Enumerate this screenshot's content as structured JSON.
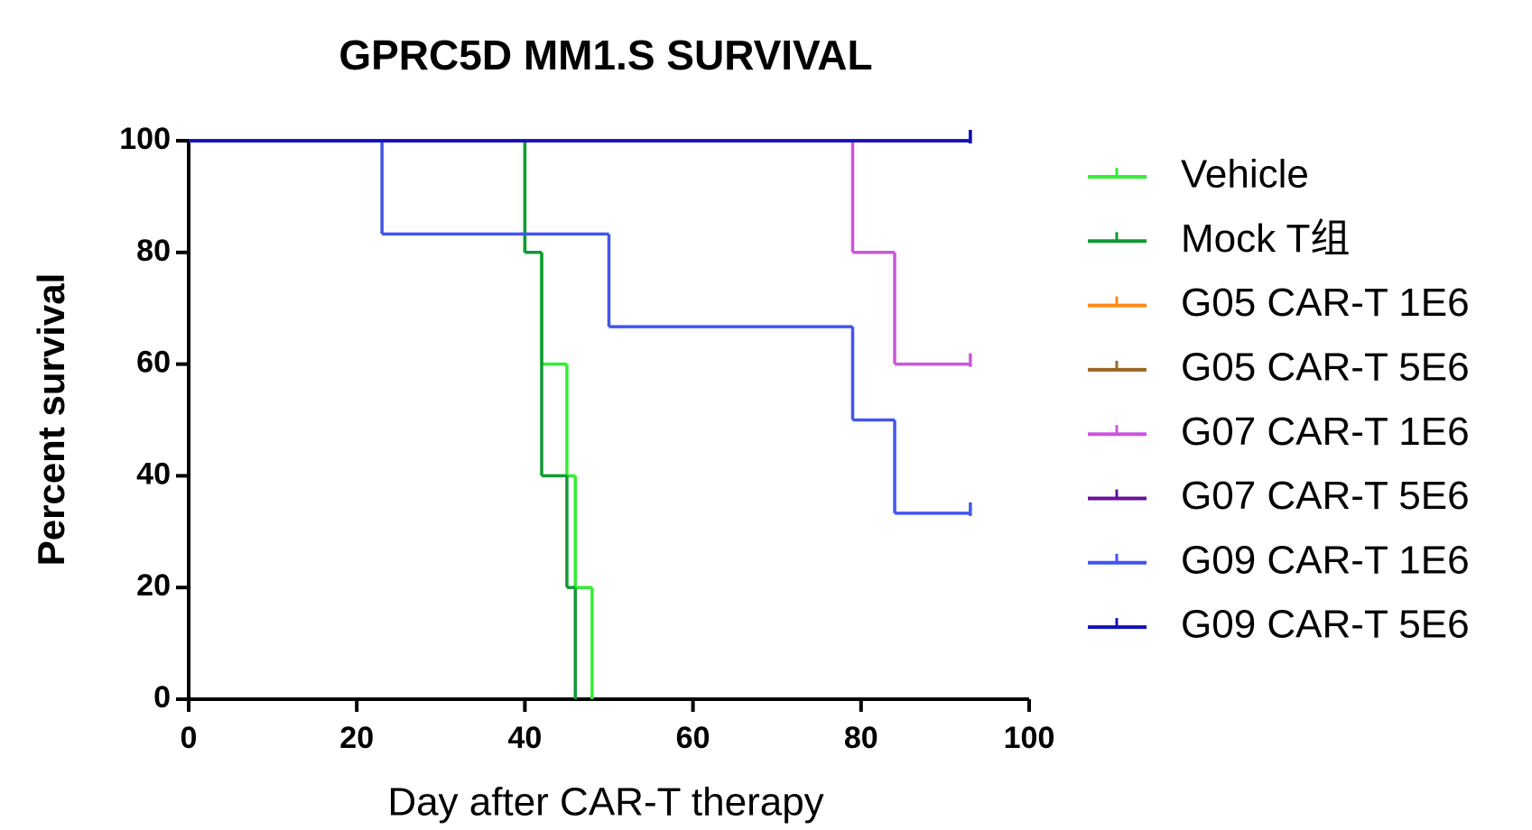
{
  "chart_data": {
    "type": "step",
    "title": "GPRC5D MM1.S SURVIVAL",
    "x_label": "Day after CAR-T therapy",
    "y_label": "Percent survival",
    "xlim": [
      0,
      100
    ],
    "xticks": [
      0,
      20,
      40,
      60,
      80,
      100
    ],
    "ylim": [
      0,
      100
    ],
    "yticks": [
      0,
      20,
      40,
      60,
      80,
      100
    ],
    "series": [
      {
        "name": "Vehicle",
        "color": "#33ee33",
        "x": [
          0,
          40,
          42,
          45,
          46,
          48
        ],
        "values": [
          100,
          80,
          60,
          40,
          20,
          0
        ]
      },
      {
        "name": "Mock T组",
        "color": "#119933",
        "x": [
          0,
          40,
          42,
          45,
          46
        ],
        "values": [
          100,
          80,
          40,
          20,
          0
        ]
      },
      {
        "name": "G05 CAR-T 1E6",
        "color": "#ff8811",
        "x": [
          0,
          93
        ],
        "values": [
          100,
          100
        ]
      },
      {
        "name": "G05 CAR-T 5E6",
        "color": "#996622",
        "x": [
          0,
          93
        ],
        "values": [
          100,
          100
        ]
      },
      {
        "name": "G07 CAR-T 1E6",
        "color": "#cc55dd",
        "x": [
          0,
          79,
          84,
          93
        ],
        "values": [
          100,
          80,
          60,
          60
        ]
      },
      {
        "name": "G07 CAR-T 5E6",
        "color": "#661199",
        "x": [
          0,
          93
        ],
        "values": [
          100,
          100
        ]
      },
      {
        "name": "G09 CAR-T 1E6",
        "color": "#4455ee",
        "x": [
          0,
          23,
          50,
          79,
          84,
          93
        ],
        "values": [
          100,
          83.3,
          66.7,
          50,
          33.3,
          33.3
        ]
      },
      {
        "name": "G09 CAR-T 5E6",
        "color": "#1111bb",
        "x": [
          0,
          93
        ],
        "values": [
          100,
          100
        ]
      }
    ]
  }
}
